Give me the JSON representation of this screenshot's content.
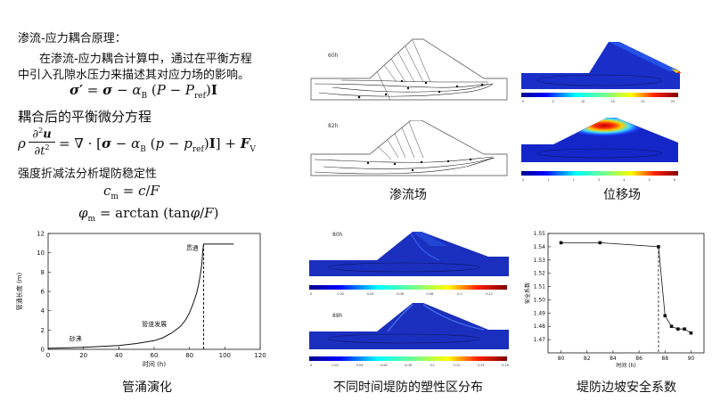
{
  "text": {
    "heading1": "渗流-应力耦合原理：",
    "para1_line1": "在渗流-应力耦合计算中，通过在平衡方程",
    "para1_line2": "中引入孔隙水压力来描述其对应力场的影响。",
    "eq1": "σ′ = σ − α_B (P − P_ref) I",
    "heading2": "耦合后的平衡微分方程",
    "eq2": "ρ ∂²u/∂t² = ∇·[σ − α_B(p − p_ref) I] + F_V",
    "heading3": "强度折减法分析堤防稳定性",
    "eq3": "c_m = c/F",
    "eq4": "φ_m = arctan(tanφ/F)"
  },
  "panels": {
    "seepage_label_60": "60h",
    "seepage_label_82": "82h",
    "plastic_label_80": "80h",
    "plastic_label_88": "88h",
    "seepage_caption": "渗流场",
    "displacement_caption": "位移场",
    "piping_caption": "管涌演化",
    "plastic_caption": "不同时间堤防的塑性区分布",
    "safety_caption": "堤防边坡安全系数"
  },
  "colorbars": {
    "disp60": [
      "0",
      "5",
      "10",
      "15",
      "20",
      "25"
    ],
    "disp82": [
      "0",
      "1",
      "2",
      "3",
      "4",
      "5",
      "6"
    ],
    "plastic80": [
      "0",
      "0.02",
      "0.04",
      "0.06",
      "0.08",
      "0.1",
      "0.12"
    ],
    "plastic88": [
      "0",
      "0.02",
      "0.04",
      "0.06",
      "0.08",
      "0.1",
      "0.12",
      "0.14",
      "0.16"
    ]
  },
  "chart_data": [
    {
      "type": "line",
      "xlabel": "时间 (h)",
      "ylabel": "管涌长度 (m)",
      "xlim": [
        0,
        120
      ],
      "ylim": [
        0,
        12
      ],
      "xticks": [
        0,
        20,
        40,
        60,
        80,
        100,
        120
      ],
      "yticks": [
        0,
        2,
        4,
        6,
        8,
        10,
        12
      ],
      "annotations": [
        "砂沸",
        "管道发展",
        "贯通"
      ],
      "x": [
        0,
        10,
        20,
        30,
        40,
        50,
        60,
        65,
        70,
        75,
        78,
        80,
        82,
        84,
        85,
        86,
        87,
        87.5,
        88,
        95,
        105
      ],
      "y": [
        0.1,
        0.15,
        0.2,
        0.3,
        0.4,
        0.6,
        0.9,
        1.2,
        1.7,
        2.4,
        3.1,
        3.8,
        4.7,
        5.8,
        6.6,
        7.6,
        8.8,
        10.2,
        10.9,
        10.9,
        10.9
      ],
      "vline_x": 88
    },
    {
      "type": "line",
      "xlabel": "时间 (h)",
      "ylabel": "安全系数",
      "xlim": [
        79,
        91
      ],
      "ylim": [
        1.46,
        1.55
      ],
      "xticks": [
        80,
        82,
        84,
        86,
        88,
        90
      ],
      "yticks": [
        1.47,
        1.48,
        1.49,
        1.5,
        1.51,
        1.52,
        1.53,
        1.54,
        1.55
      ],
      "x": [
        80,
        83,
        87.5,
        88,
        88.5,
        89,
        89.5,
        90
      ],
      "y": [
        1.543,
        1.543,
        1.54,
        1.488,
        1.48,
        1.478,
        1.478,
        1.475
      ],
      "vline_x": 87.5
    }
  ]
}
